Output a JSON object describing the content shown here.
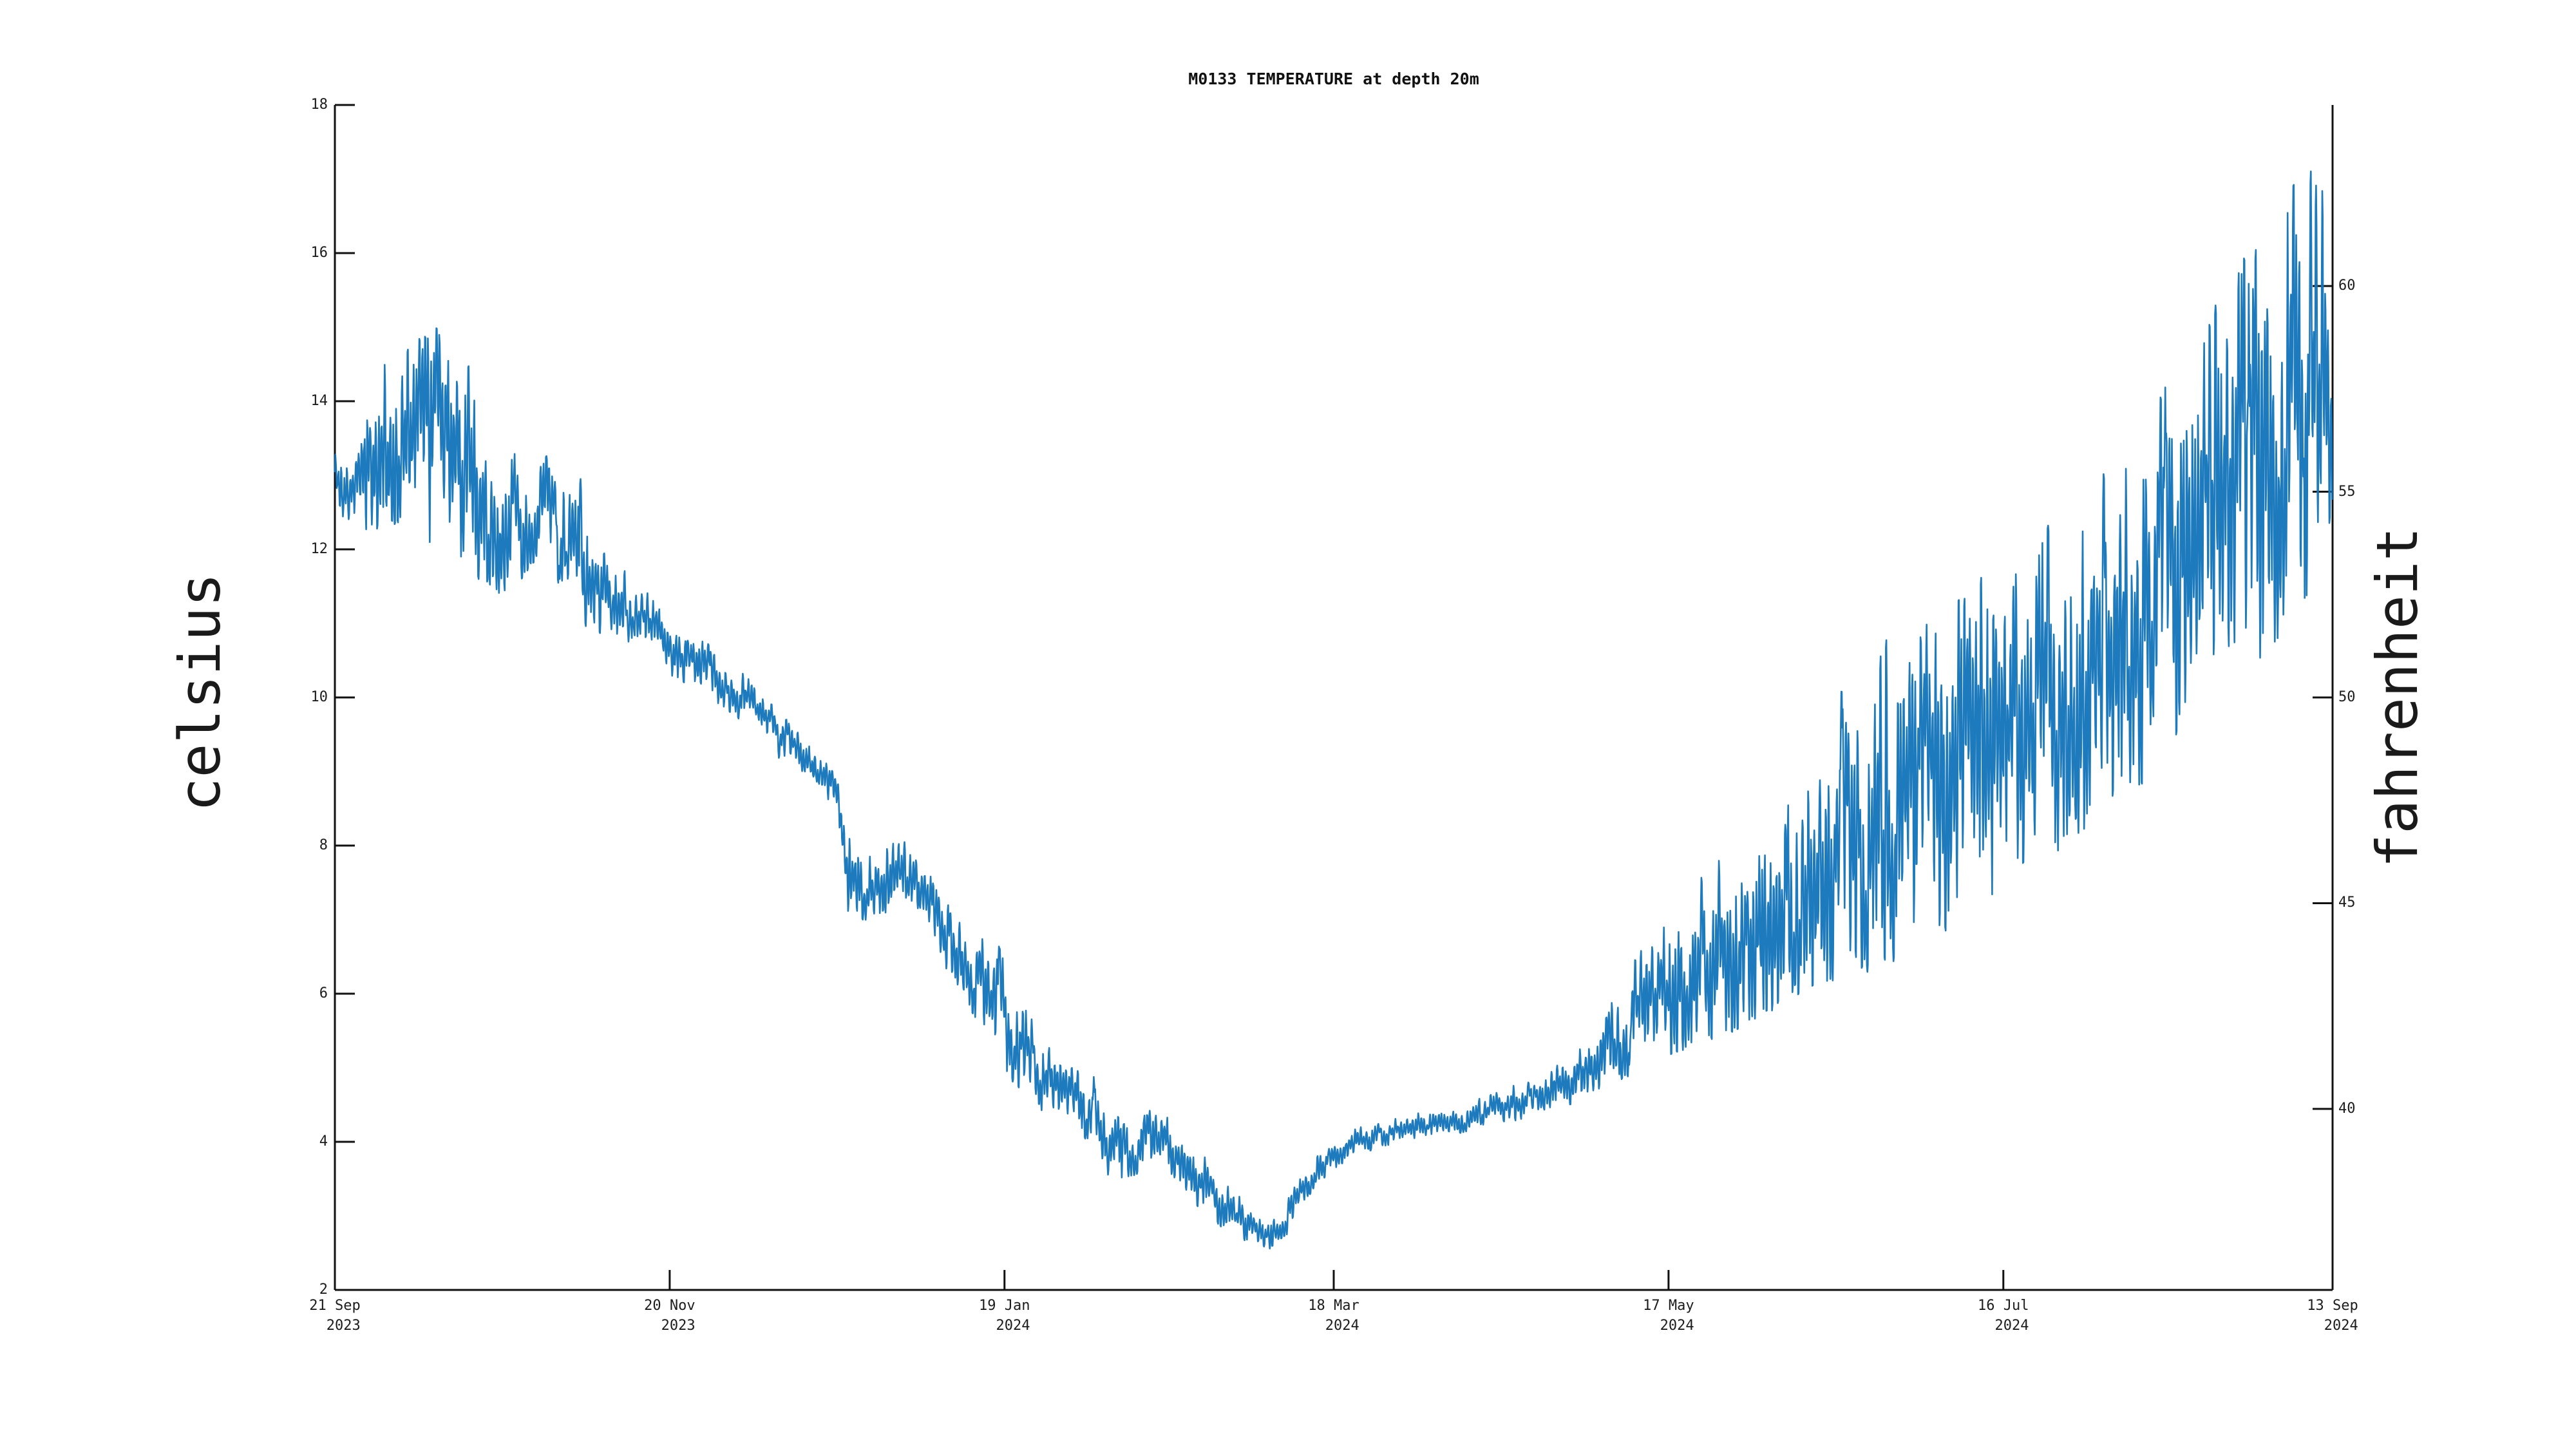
{
  "title": "M0133 TEMPERATURE at depth 20m",
  "axes": {
    "left_label": "celsius",
    "right_label": "fahrenheit",
    "left_tick_labels": [
      "2",
      "4",
      "6",
      "8",
      "10",
      "12",
      "14",
      "16",
      "18"
    ],
    "right_tick_labels": [
      "40",
      "45",
      "50",
      "55",
      "60"
    ]
  },
  "chart_data": {
    "type": "line",
    "title": "M0133 TEMPERATURE at depth 20m",
    "ylabel": "celsius",
    "ylabel_right": "fahrenheit",
    "ylim_celsius": [
      2,
      18
    ],
    "y_ticks_celsius": [
      2,
      4,
      6,
      8,
      10,
      12,
      14,
      16,
      18
    ],
    "y_ticks_fahrenheit": [
      40,
      45,
      50,
      55,
      60
    ],
    "right_axis_rule": "fahrenheit = celsius*1.8+32, aligned to left axis",
    "x_unit": "days since 21 Sep 2023",
    "xlim_days": [
      0,
      358
    ],
    "x_ticks": [
      {
        "day": 0,
        "line1": "21 Sep",
        "line2": "2023"
      },
      {
        "day": 60,
        "line1": "20 Nov",
        "line2": "2023"
      },
      {
        "day": 120,
        "line1": "19 Jan",
        "line2": "2024"
      },
      {
        "day": 179,
        "line1": "18 Mar",
        "line2": "2024"
      },
      {
        "day": 239,
        "line1": "17 May",
        "line2": "2024"
      },
      {
        "day": 299,
        "line1": "16 Jul",
        "line2": "2024"
      },
      {
        "day": 358,
        "line1": "13 Sep",
        "line2": "2024"
      }
    ],
    "grid": false,
    "legend": "none",
    "series": [
      {
        "name": "temperature at 20m",
        "color": "#1173b9",
        "style": "high-frequency noisy line; envelope points are [day, mean_C, low_C, high_C]",
        "envelope": [
          [
            0,
            12.9,
            12.5,
            13.3
          ],
          [
            3,
            12.9,
            12.4,
            13.4
          ],
          [
            6,
            13.1,
            12.1,
            14.1
          ],
          [
            9,
            13.6,
            12.3,
            14.7
          ],
          [
            12,
            13.7,
            12.4,
            14.95
          ],
          [
            15,
            13.5,
            12.0,
            14.8
          ],
          [
            18,
            13.7,
            12.2,
            14.95
          ],
          [
            21,
            13.4,
            11.9,
            14.7
          ],
          [
            24,
            13.1,
            11.7,
            14.4
          ],
          [
            27,
            12.7,
            11.6,
            13.9
          ],
          [
            30,
            12.4,
            11.4,
            13.5
          ],
          [
            33,
            12.3,
            11.6,
            13.2
          ],
          [
            36,
            12.6,
            11.9,
            13.4
          ],
          [
            39,
            12.5,
            11.8,
            13.2
          ],
          [
            42,
            12.0,
            11.2,
            12.8
          ],
          [
            44,
            11.9,
            11.0,
            12.7
          ],
          [
            47,
            11.6,
            10.9,
            12.3
          ],
          [
            50,
            11.3,
            10.8,
            11.9
          ],
          [
            53,
            11.15,
            10.75,
            11.6
          ],
          [
            56,
            10.95,
            10.55,
            11.4
          ],
          [
            60,
            10.7,
            10.3,
            11.1
          ],
          [
            64,
            10.5,
            10.15,
            10.85
          ],
          [
            68,
            10.3,
            9.95,
            10.65
          ],
          [
            72,
            10.05,
            9.75,
            10.4
          ],
          [
            76,
            9.8,
            9.5,
            10.1
          ],
          [
            80,
            9.45,
            9.15,
            9.75
          ],
          [
            84,
            9.2,
            8.95,
            9.5
          ],
          [
            88,
            8.9,
            8.65,
            9.2
          ],
          [
            90,
            8.75,
            8.4,
            9.05
          ],
          [
            92,
            7.6,
            7.1,
            8.3
          ],
          [
            95,
            7.4,
            7.0,
            7.9
          ],
          [
            99,
            7.5,
            7.05,
            8.0
          ],
          [
            103,
            7.65,
            7.2,
            8.1
          ],
          [
            107,
            7.2,
            6.75,
            7.7
          ],
          [
            111,
            6.5,
            6.0,
            7.1
          ],
          [
            115,
            6.15,
            5.6,
            6.8
          ],
          [
            119,
            5.8,
            5.1,
            6.6
          ],
          [
            123,
            5.3,
            4.7,
            6.0
          ],
          [
            127,
            4.85,
            4.4,
            5.4
          ],
          [
            131,
            4.55,
            4.15,
            5.0
          ],
          [
            135,
            4.45,
            4.05,
            4.95
          ],
          [
            139,
            4.0,
            3.5,
            4.5
          ],
          [
            143,
            3.95,
            3.55,
            4.4
          ],
          [
            147,
            4.1,
            3.7,
            4.5
          ],
          [
            151,
            3.85,
            3.45,
            4.25
          ],
          [
            155,
            3.5,
            3.1,
            3.9
          ],
          [
            159,
            3.15,
            2.85,
            3.5
          ],
          [
            163,
            2.9,
            2.65,
            3.2
          ],
          [
            167,
            2.72,
            2.55,
            2.95
          ],
          [
            170,
            2.8,
            2.6,
            3.1
          ],
          [
            173,
            3.4,
            3.15,
            3.7
          ],
          [
            177,
            3.7,
            3.5,
            3.95
          ],
          [
            181,
            3.9,
            3.72,
            4.12
          ],
          [
            186,
            4.05,
            3.9,
            4.25
          ],
          [
            191,
            4.15,
            4.0,
            4.35
          ],
          [
            196,
            4.25,
            4.1,
            4.45
          ],
          [
            201,
            4.3,
            4.12,
            4.5
          ],
          [
            206,
            4.38,
            4.18,
            4.6
          ],
          [
            211,
            4.5,
            4.28,
            4.75
          ],
          [
            216,
            4.62,
            4.38,
            4.9
          ],
          [
            221,
            4.8,
            4.5,
            5.2
          ],
          [
            226,
            5.05,
            4.7,
            5.6
          ],
          [
            231,
            5.4,
            4.9,
            6.2
          ],
          [
            236,
            5.8,
            5.1,
            6.8
          ],
          [
            241,
            6.1,
            5.25,
            7.3
          ],
          [
            246,
            6.35,
            5.4,
            7.8
          ],
          [
            251,
            6.6,
            5.55,
            8.3
          ],
          [
            256,
            6.9,
            5.8,
            8.8
          ],
          [
            261,
            7.2,
            6.0,
            9.2
          ],
          [
            266,
            7.5,
            6.15,
            9.6
          ],
          [
            271,
            7.8,
            6.3,
            10.1
          ],
          [
            276,
            8.1,
            6.45,
            10.5
          ],
          [
            281,
            8.35,
            6.6,
            10.75
          ],
          [
            286,
            8.6,
            6.8,
            11.0
          ],
          [
            291,
            8.85,
            7.0,
            11.25
          ],
          [
            296,
            9.15,
            7.25,
            11.55
          ],
          [
            301,
            9.5,
            7.5,
            11.9
          ],
          [
            306,
            9.85,
            7.8,
            12.2
          ],
          [
            311,
            10.2,
            8.1,
            12.55
          ],
          [
            316,
            10.55,
            8.4,
            12.9
          ],
          [
            321,
            10.95,
            8.7,
            13.3
          ],
          [
            326,
            11.4,
            9.0,
            13.85
          ],
          [
            331,
            11.9,
            9.35,
            14.5
          ],
          [
            336,
            12.4,
            9.7,
            15.1
          ],
          [
            341,
            12.9,
            10.1,
            15.7
          ],
          [
            346,
            13.45,
            10.6,
            16.4
          ],
          [
            350,
            13.85,
            11.0,
            16.8
          ],
          [
            354,
            14.15,
            11.3,
            17.1
          ],
          [
            358,
            14.5,
            12.6,
            16.6
          ]
        ],
        "spikes": [
          [
            17,
            11.9
          ],
          [
            23,
            11.55
          ],
          [
            29,
            11.3
          ],
          [
            40,
            10.9
          ],
          [
            44,
            14.8
          ],
          [
            45,
            10.8
          ],
          [
            92,
            7.0
          ],
          [
            119,
            6.85
          ],
          [
            136,
            5.1
          ],
          [
            141,
            3.4
          ],
          [
            163,
            2.6
          ],
          [
            168,
            2.55
          ],
          [
            232,
            4.85
          ],
          [
            244,
            5.2
          ],
          [
            256,
            5.6
          ],
          [
            268,
            6.1
          ],
          [
            270,
            11.5
          ],
          [
            278,
            12.5
          ],
          [
            283,
            6.5
          ],
          [
            291,
            12.1
          ],
          [
            295,
            13.0
          ],
          [
            297,
            7.2
          ],
          [
            307,
            12.6
          ],
          [
            312,
            8.1
          ],
          [
            317,
            13.6
          ],
          [
            328,
            15.0
          ],
          [
            330,
            9.2
          ],
          [
            337,
            15.8
          ],
          [
            343,
            16.3
          ],
          [
            345,
            10.4
          ],
          [
            351,
            17.3
          ],
          [
            353,
            11.2
          ],
          [
            355,
            17.7
          ]
        ],
        "extremes": {
          "min_celsius": 2.55,
          "min_at": "early Mar 2024",
          "max_celsius": 17.7,
          "max_at": "early Sep 2024"
        }
      }
    ]
  },
  "geometry_note": "plot box: left/right/bottom spines only, inward ticks",
  "colors": {
    "line": "#1173b9",
    "axis": "#111111",
    "text": "#1c1c1c",
    "background": "#ffffff"
  }
}
